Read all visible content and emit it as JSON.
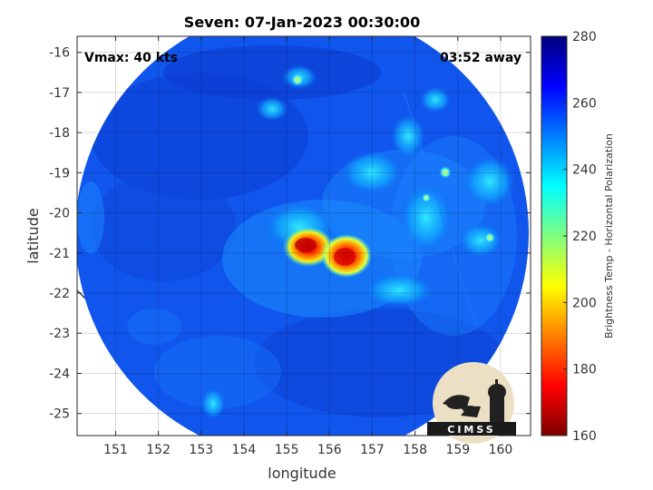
{
  "title": "Seven: 07-Jan-2023 00:30:00",
  "annotations": {
    "vmax": "Vmax: 40 kts",
    "time_away": "03:52 away"
  },
  "axes": {
    "xlabel": "longitude",
    "ylabel": "latitude",
    "xlim": [
      150.1,
      160.7
    ],
    "ylim": [
      -25.55,
      -15.6
    ],
    "xticks": [
      "151",
      "152",
      "153",
      "154",
      "155",
      "156",
      "157",
      "158",
      "159",
      "160"
    ],
    "yticks": [
      "-16",
      "-17",
      "-18",
      "-19",
      "-20",
      "-21",
      "-22",
      "-23",
      "-24",
      "-25"
    ],
    "grid": true
  },
  "colorbar": {
    "label": "Brightness Temp - Horizontal Polarization",
    "range": [
      160,
      280
    ],
    "ticks": [
      "280",
      "260",
      "240",
      "220",
      "200",
      "180",
      "160"
    ],
    "colormap": [
      "#7f0000",
      "#ff0000",
      "#ff7f00",
      "#ffff00",
      "#7fff7f",
      "#00ffff",
      "#007fff",
      "#0000ff",
      "#00007f"
    ]
  },
  "logo": {
    "text": "CIMSS"
  },
  "colors": {
    "swath_bg": "#1055ec",
    "coast": "#000000",
    "land": "#ffffff"
  }
}
